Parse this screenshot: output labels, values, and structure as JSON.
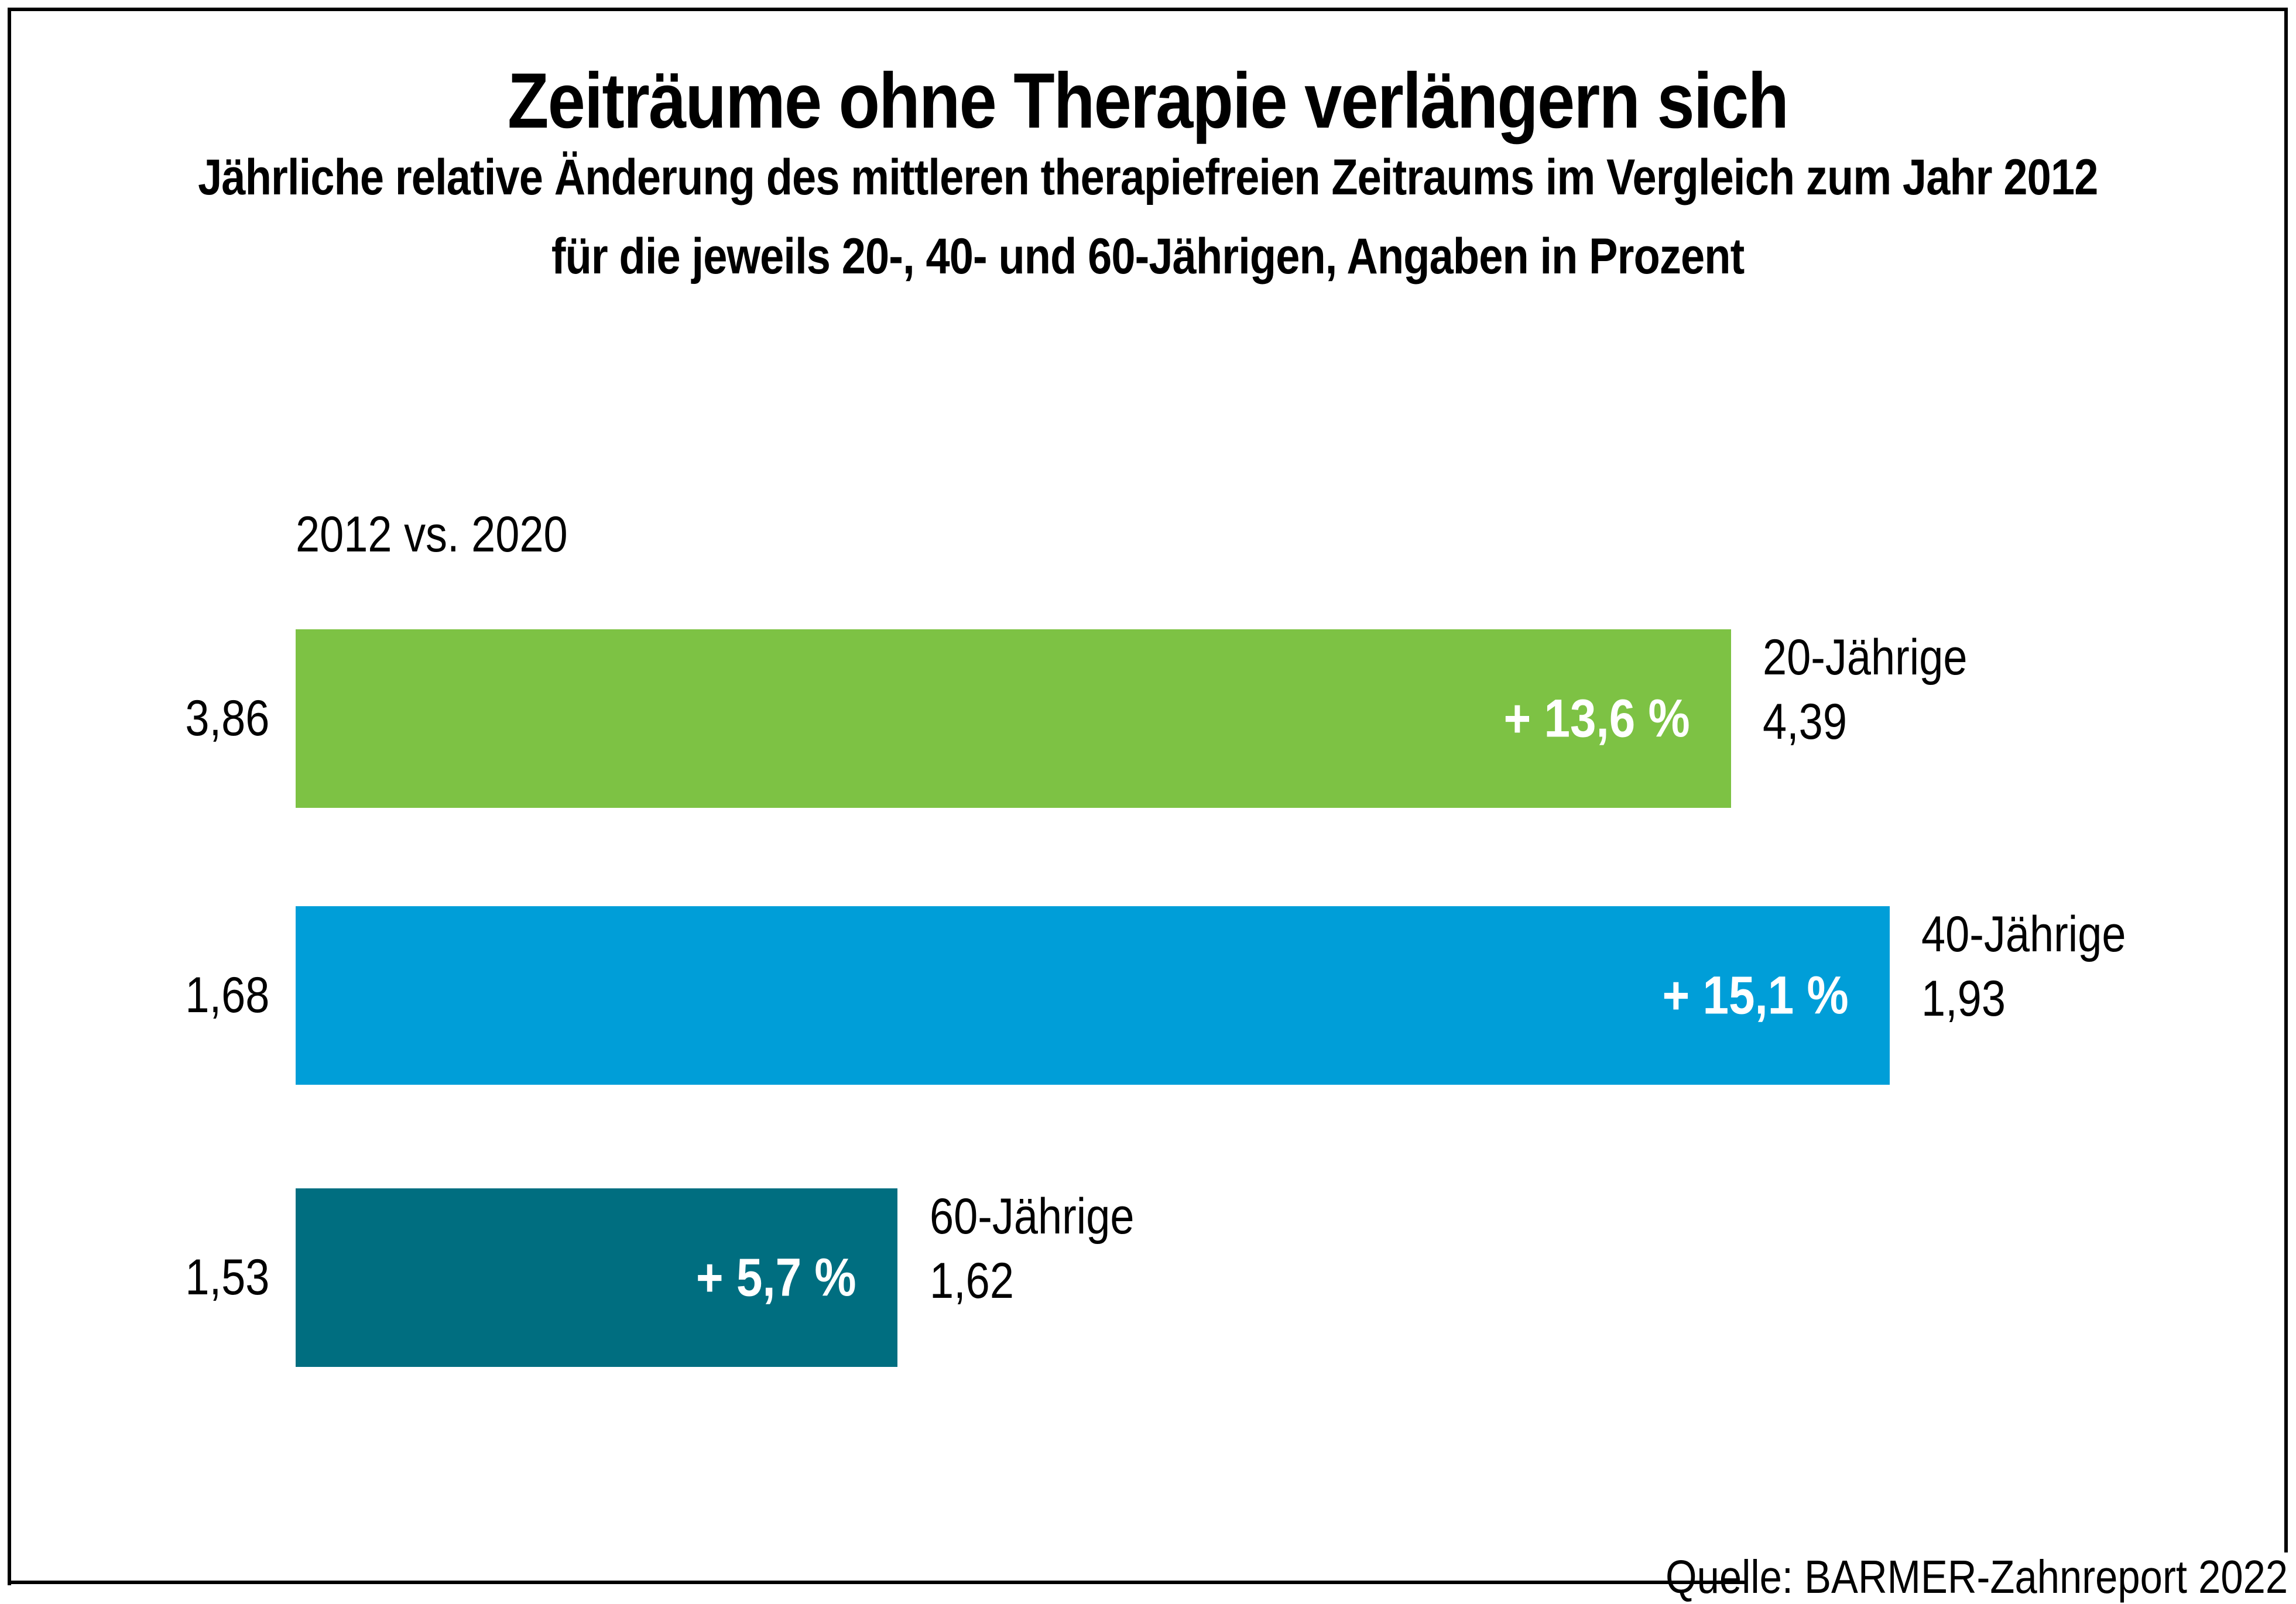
{
  "chart": {
    "title": "Zeiträume ohne Therapie verlängern sich",
    "subtitle_line1": "Jährliche relative Änderung des mittleren therapiefreien Zeitraums im Vergleich zum Jahr 2012",
    "subtitle_line2": "für die jeweils 20-, 40- und 60-Jährigen, Angaben in Prozent",
    "period_label": "2012 vs. 2020",
    "source": "Quelle: BARMER-Zahnreport 2022"
  },
  "chart_data": {
    "type": "bar",
    "orientation": "horizontal",
    "title": "Zeiträume ohne Therapie verlängern sich",
    "subtitle": "Jährliche relative Änderung des mittleren therapiefreien Zeitraums im Vergleich zum Jahr 2012 für die jeweils 20-, 40- und 60-Jährigen, Angaben in Prozent",
    "unit": "Prozent",
    "comparison": "2012 vs. 2020",
    "legend_position": "none",
    "grid": false,
    "categories": [
      "20-Jährige",
      "40-Jährige",
      "60-Jährige"
    ],
    "bars": [
      {
        "category": "20-Jährige",
        "value_2012": "3,86",
        "value_2020": "4,39",
        "change_percent": 13.6,
        "change_label": "+ 13,6 %",
        "color": "#7dc244"
      },
      {
        "category": "40-Jährige",
        "value_2012": "1,68",
        "value_2020": "1,93",
        "change_percent": 15.1,
        "change_label": "+ 15,1 %",
        "color": "#009ed8"
      },
      {
        "category": "60-Jährige",
        "value_2012": "1,53",
        "value_2020": "1,62",
        "change_percent": 5.7,
        "change_label": "+ 5,7 %",
        "color": "#006e80"
      }
    ]
  }
}
